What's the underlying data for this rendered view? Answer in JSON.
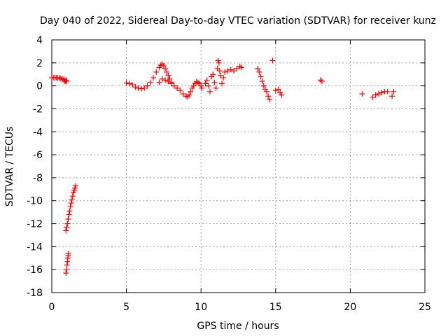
{
  "chart_data": {
    "type": "scatter",
    "title": "Day 040 of 2022, Sidereal Day-to-day VTEC variation (SDTVAR) for receiver kunz",
    "xlabel": "GPS time / hours",
    "ylabel": "SDTVAR / TECUs",
    "xlim": [
      0,
      25
    ],
    "ylim": [
      -18,
      4
    ],
    "xticks": [
      0,
      5,
      10,
      15,
      20,
      25
    ],
    "yticks": [
      -18,
      -16,
      -14,
      -12,
      -10,
      -8,
      -6,
      -4,
      -2,
      0,
      2,
      4
    ],
    "grid": true,
    "marker": "+",
    "color": "#ff0000",
    "series": [
      {
        "name": "SDTVAR",
        "points": [
          [
            0.0,
            0.7
          ],
          [
            0.1,
            0.72
          ],
          [
            0.2,
            0.7
          ],
          [
            0.3,
            0.72
          ],
          [
            0.4,
            0.68
          ],
          [
            0.5,
            0.7
          ],
          [
            0.6,
            0.65
          ],
          [
            0.7,
            0.6
          ],
          [
            0.8,
            0.55
          ],
          [
            0.85,
            0.45
          ],
          [
            0.9,
            0.4
          ],
          [
            0.95,
            0.5
          ],
          [
            1.0,
            0.4
          ],
          [
            0.95,
            -16.3
          ],
          [
            1.0,
            -16.0
          ],
          [
            1.02,
            -15.6
          ],
          [
            1.05,
            -15.3
          ],
          [
            1.08,
            -15.0
          ],
          [
            1.1,
            -14.8
          ],
          [
            1.12,
            -14.6
          ],
          [
            0.95,
            -12.6
          ],
          [
            1.0,
            -12.3
          ],
          [
            1.05,
            -12.0
          ],
          [
            1.1,
            -11.6
          ],
          [
            1.15,
            -11.2
          ],
          [
            1.2,
            -10.9
          ],
          [
            1.25,
            -10.5
          ],
          [
            1.3,
            -10.2
          ],
          [
            1.35,
            -9.9
          ],
          [
            1.4,
            -9.6
          ],
          [
            1.45,
            -9.3
          ],
          [
            1.5,
            -9.1
          ],
          [
            1.55,
            -8.9
          ],
          [
            1.6,
            -8.7
          ],
          [
            5.0,
            0.25
          ],
          [
            5.2,
            0.2
          ],
          [
            5.4,
            0.1
          ],
          [
            5.6,
            -0.1
          ],
          [
            5.8,
            -0.2
          ],
          [
            6.0,
            -0.25
          ],
          [
            6.2,
            -0.2
          ],
          [
            6.4,
            0.0
          ],
          [
            6.6,
            0.3
          ],
          [
            6.8,
            0.7
          ],
          [
            7.0,
            1.2
          ],
          [
            7.2,
            1.6
          ],
          [
            7.3,
            1.8
          ],
          [
            7.4,
            1.9
          ],
          [
            7.5,
            1.75
          ],
          [
            7.6,
            1.5
          ],
          [
            7.7,
            1.2
          ],
          [
            7.8,
            0.9
          ],
          [
            7.9,
            0.6
          ],
          [
            8.0,
            0.3
          ],
          [
            7.2,
            0.3
          ],
          [
            7.4,
            0.6
          ],
          [
            7.6,
            0.5
          ],
          [
            7.8,
            0.4
          ],
          [
            8.0,
            0.2
          ],
          [
            8.2,
            0.0
          ],
          [
            8.4,
            -0.2
          ],
          [
            8.6,
            -0.4
          ],
          [
            8.8,
            -0.7
          ],
          [
            9.0,
            -0.9
          ],
          [
            9.1,
            -0.95
          ],
          [
            9.2,
            -0.8
          ],
          [
            9.3,
            -0.5
          ],
          [
            9.4,
            -0.2
          ],
          [
            9.5,
            0.0
          ],
          [
            9.6,
            0.2
          ],
          [
            9.7,
            0.35
          ],
          [
            9.8,
            0.3
          ],
          [
            9.9,
            0.2
          ],
          [
            10.0,
            0.0
          ],
          [
            10.05,
            -0.2
          ],
          [
            10.3,
            0.2
          ],
          [
            10.4,
            0.5
          ],
          [
            10.5,
            0.0
          ],
          [
            10.6,
            -0.5
          ],
          [
            10.7,
            0.8
          ],
          [
            10.8,
            1.0
          ],
          [
            10.9,
            0.3
          ],
          [
            11.0,
            -0.2
          ],
          [
            11.1,
            1.5
          ],
          [
            11.15,
            2.2
          ],
          [
            11.2,
            2.0
          ],
          [
            11.25,
            1.3
          ],
          [
            11.3,
            0.9
          ],
          [
            11.4,
            0.2
          ],
          [
            11.5,
            0.7
          ],
          [
            11.6,
            1.2
          ],
          [
            11.8,
            1.3
          ],
          [
            12.0,
            1.4
          ],
          [
            12.2,
            1.3
          ],
          [
            12.4,
            1.5
          ],
          [
            12.6,
            1.7
          ],
          [
            12.7,
            1.6
          ],
          [
            13.8,
            1.5
          ],
          [
            13.9,
            1.2
          ],
          [
            14.0,
            0.8
          ],
          [
            14.1,
            0.4
          ],
          [
            14.2,
            0.0
          ],
          [
            14.3,
            -0.3
          ],
          [
            14.4,
            -0.5
          ],
          [
            14.5,
            -0.9
          ],
          [
            14.6,
            -1.2
          ],
          [
            14.8,
            2.2
          ],
          [
            15.0,
            -0.4
          ],
          [
            15.2,
            -0.3
          ],
          [
            15.3,
            -0.6
          ],
          [
            15.4,
            -0.8
          ],
          [
            18.0,
            0.5
          ],
          [
            18.1,
            0.4
          ],
          [
            20.8,
            -0.7
          ],
          [
            21.5,
            -1.0
          ],
          [
            21.7,
            -0.8
          ],
          [
            21.9,
            -0.7
          ],
          [
            22.1,
            -0.6
          ],
          [
            22.3,
            -0.5
          ],
          [
            22.5,
            -0.5
          ],
          [
            22.8,
            -0.9
          ],
          [
            22.9,
            -0.5
          ]
        ]
      }
    ]
  }
}
